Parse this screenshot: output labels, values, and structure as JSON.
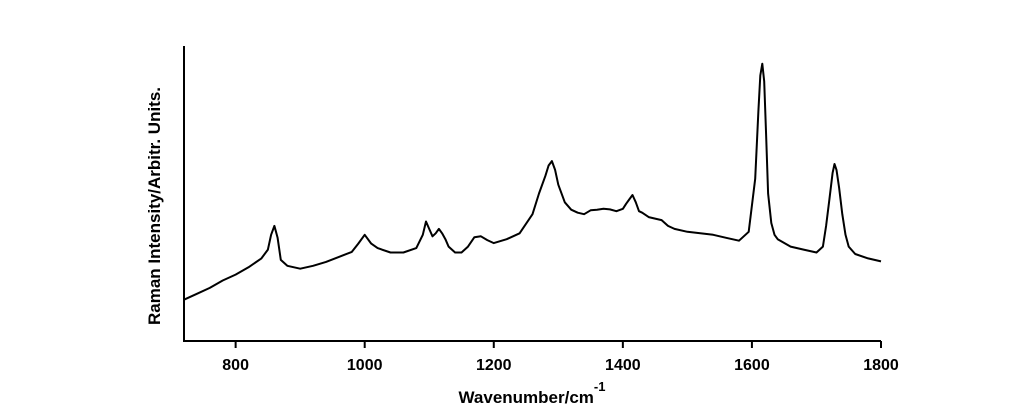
{
  "chart_data": {
    "type": "line",
    "title": "",
    "xlabel": "Wavenumber/cm",
    "xlabel_superscript": "-1",
    "ylabel": "Raman Intensity/Arbitr. Units.",
    "xlim": [
      720,
      1800
    ],
    "ylim": [
      0,
      100
    ],
    "xticks": [
      800,
      1000,
      1200,
      1400,
      1600,
      1800
    ],
    "xtick_labels": [
      "800",
      "1000",
      "1200",
      "1400",
      "1600",
      "1800"
    ],
    "y_tick_labels_shown": false,
    "grid": false,
    "legend": "none",
    "line_color": "#000000",
    "series": [
      {
        "x": [
          720,
          740,
          760,
          780,
          800,
          820,
          840,
          850,
          855,
          860,
          865,
          870,
          880,
          900,
          920,
          940,
          960,
          980,
          990,
          1000,
          1010,
          1020,
          1040,
          1060,
          1080,
          1090,
          1095,
          1100,
          1105,
          1110,
          1115,
          1120,
          1125,
          1130,
          1140,
          1150,
          1160,
          1170,
          1180,
          1190,
          1200,
          1220,
          1240,
          1260,
          1270,
          1280,
          1285,
          1290,
          1295,
          1300,
          1310,
          1320,
          1330,
          1340,
          1350,
          1360,
          1370,
          1380,
          1390,
          1400,
          1405,
          1410,
          1415,
          1420,
          1425,
          1430,
          1440,
          1450,
          1460,
          1470,
          1480,
          1500,
          1520,
          1540,
          1560,
          1580,
          1595,
          1605,
          1610,
          1613,
          1616,
          1619,
          1622,
          1625,
          1630,
          1635,
          1640,
          1660,
          1680,
          1700,
          1710,
          1715,
          1720,
          1725,
          1728,
          1731,
          1735,
          1740,
          1745,
          1750,
          1760,
          1780,
          1800
        ],
        "y": [
          14,
          16,
          18,
          20.5,
          22.5,
          25,
          28,
          31,
          36,
          39,
          35,
          27.5,
          25.5,
          24.5,
          25.5,
          26.8,
          28.5,
          30.2,
          33,
          36,
          33,
          31.5,
          30,
          30,
          31.5,
          36,
          40.5,
          38,
          35.5,
          36.5,
          38,
          36.5,
          34.5,
          32,
          30,
          30,
          32,
          35.2,
          35.5,
          34.2,
          33.2,
          34.5,
          36.5,
          43,
          50,
          56,
          59.5,
          61,
          58,
          53,
          47,
          44.5,
          43.5,
          43,
          44.3,
          44.5,
          44.8,
          44.6,
          44,
          44.8,
          46.5,
          48,
          49.5,
          47,
          44,
          43.5,
          42,
          41.5,
          41,
          39,
          38,
          37,
          36.5,
          36,
          35,
          34,
          37,
          55,
          78,
          90,
          94,
          88,
          70,
          50,
          40,
          36,
          34.5,
          32,
          31,
          30,
          32,
          39,
          48,
          57,
          60,
          58,
          52,
          43,
          36,
          32,
          29.5,
          28,
          27
        ]
      }
    ]
  }
}
